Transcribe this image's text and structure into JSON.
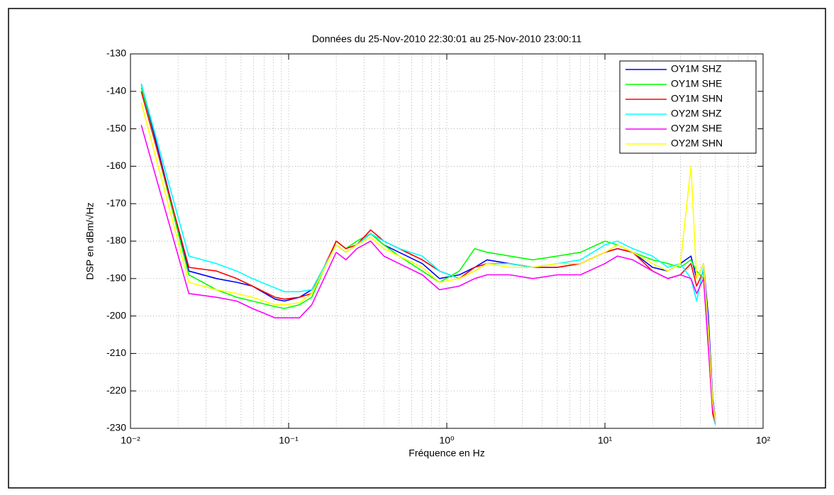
{
  "chart_data": {
    "type": "line",
    "title": "Données du 25-Nov-2010 22:30:01 au 25-Nov-2010 23:00:11",
    "x_label": "Fréquence en Hz",
    "y_label": "DSP en dBm/√Hz",
    "x_scale": "log",
    "grid": true,
    "minor_grid": true,
    "legend_position": "top-right",
    "xlim": [
      0.01,
      100
    ],
    "xticks": [
      {
        "value": 0.01,
        "label": "10⁻²"
      },
      {
        "value": 0.1,
        "label": "10⁻¹"
      },
      {
        "value": 1,
        "label": "10⁰"
      },
      {
        "value": 10,
        "label": "10¹"
      },
      {
        "value": 100,
        "label": "10²"
      }
    ],
    "ylim": [
      -230,
      -130
    ],
    "yticks": [
      -230,
      -220,
      -210,
      -200,
      -190,
      -180,
      -170,
      -160,
      -150,
      -140,
      -130
    ],
    "x": [
      0.0117,
      0.0234,
      0.035,
      0.047,
      0.059,
      0.082,
      0.094,
      0.117,
      0.14,
      0.2,
      0.23,
      0.27,
      0.33,
      0.4,
      0.5,
      0.7,
      0.9,
      1.2,
      1.5,
      1.8,
      2.5,
      3.5,
      5,
      7,
      10,
      12,
      15,
      20,
      25,
      30,
      35,
      38,
      42,
      45,
      48,
      50
    ],
    "series": [
      {
        "name": "OY1M SHZ",
        "color": "#0000ff",
        "values": [
          -138,
          -188,
          -190,
          -191,
          -192,
          -195.5,
          -196,
          -195,
          -193,
          -181,
          -183,
          -181,
          -178,
          -181,
          -183,
          -186,
          -190,
          -189,
          -187,
          -185,
          -186,
          -187,
          -187,
          -186,
          -183,
          -182,
          -183,
          -187,
          -188,
          -186,
          -184,
          -190,
          -186,
          -200,
          -222,
          -228
        ]
      },
      {
        "name": "OY1M SHE",
        "color": "#00ff00",
        "values": [
          -139,
          -189,
          -193,
          -195,
          -196,
          -197.5,
          -198,
          -197,
          -195,
          -180,
          -182,
          -180,
          -178,
          -181,
          -184,
          -188,
          -191,
          -188,
          -182,
          -183,
          -184,
          -185,
          -184,
          -183,
          -180,
          -181,
          -183,
          -185,
          -186,
          -187,
          -185,
          -188,
          -190,
          -205,
          -225,
          -228
        ]
      },
      {
        "name": "OY1M SHN",
        "color": "#ff0000",
        "values": [
          -140,
          -187,
          -188,
          -190,
          -192,
          -195,
          -195.5,
          -195,
          -194,
          -180,
          -182,
          -181,
          -177,
          -180,
          -182,
          -185,
          -188,
          -190,
          -187,
          -186,
          -186,
          -187,
          -187,
          -186,
          -183,
          -182,
          -183,
          -188,
          -190,
          -189,
          -186,
          -192,
          -188,
          -208,
          -226,
          -229
        ]
      },
      {
        "name": "OY2M SHZ",
        "color": "#00ffff",
        "values": [
          -138,
          -184,
          -186,
          -188,
          -190,
          -192.5,
          -193.5,
          -193.5,
          -193,
          -181,
          -183,
          -181,
          -178,
          -180,
          -182,
          -184,
          -188,
          -190,
          -188,
          -186,
          -186,
          -187,
          -186,
          -185,
          -181,
          -180,
          -182,
          -184,
          -187,
          -186,
          -190,
          -196,
          -187,
          -205,
          -224,
          -229
        ]
      },
      {
        "name": "OY2M SHE",
        "color": "#ff00ff",
        "values": [
          -149,
          -194,
          -195,
          -196,
          -198,
          -200.5,
          -200.5,
          -200.5,
          -197,
          -183,
          -185,
          -182,
          -180,
          -184,
          -186,
          -189,
          -193,
          -192,
          -190,
          -189,
          -189,
          -190,
          -189,
          -189,
          -186,
          -184,
          -185,
          -188,
          -190,
          -189,
          -190,
          -194,
          -190,
          -208,
          -225,
          -228
        ]
      },
      {
        "name": "OY2M SHN",
        "color": "#ffff00",
        "values": [
          -143,
          -191,
          -193,
          -194,
          -195,
          -197,
          -197,
          -196.5,
          -194,
          -181,
          -183,
          -181,
          -179,
          -182,
          -184,
          -187,
          -191,
          -190,
          -188,
          -186,
          -187,
          -187,
          -186,
          -186,
          -183,
          -181,
          -183,
          -186,
          -188,
          -186,
          -160,
          -190,
          -186,
          -203,
          -223,
          -228
        ]
      }
    ]
  }
}
